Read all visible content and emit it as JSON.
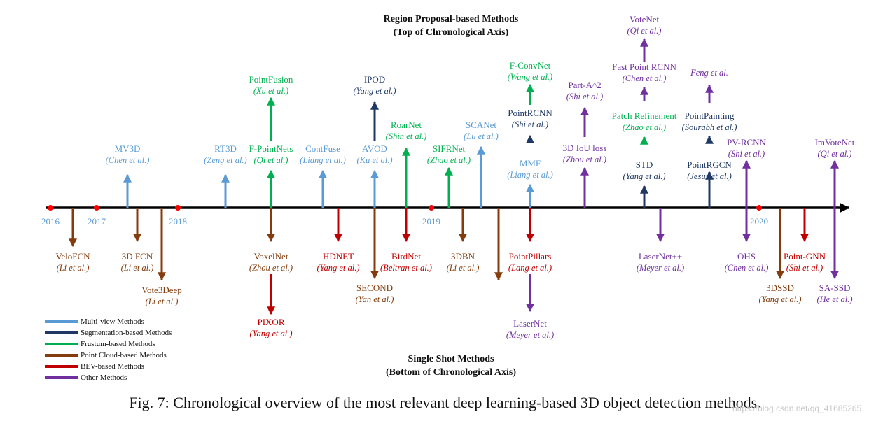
{
  "headings": {
    "top_title": "Region Proposal-based Methods",
    "top_subtitle": "(Top of Chronological Axis)",
    "bottom_title": "Single Shot Methods",
    "bottom_subtitle": "(Bottom of Chronological Axis)"
  },
  "caption": "Fig. 7: Chronological overview of the most relevant deep learning-based 3D object detection methods.",
  "watermark": "https://blog.csdn.net/qq_41685265",
  "colors": {
    "multiview": "#5b9bd5",
    "segmentation": "#1f3864",
    "frustum": "#00b050",
    "pointcloud": "#843c0c",
    "bev": "#c00000",
    "other": "#7030a0",
    "axis": "#000000",
    "year_dot": "#ff0000",
    "year_text": "#5b9bd5"
  },
  "legend": [
    {
      "key": "multiview",
      "label": "Multi-view Methods"
    },
    {
      "key": "segmentation",
      "label": "Segmentation-based Methods"
    },
    {
      "key": "frustum",
      "label": "Frustum-based Methods"
    },
    {
      "key": "pointcloud",
      "label": "Point Cloud-based Methods"
    },
    {
      "key": "bev",
      "label": "BEV-based Methods"
    },
    {
      "key": "other",
      "label": "Other Methods"
    }
  ],
  "years": [
    "2016",
    "2017",
    "2018",
    "2019",
    "2020"
  ],
  "methods": [
    {
      "name": "MV3D",
      "authors": "(Chen et al.)",
      "category": "multiview",
      "side": "top"
    },
    {
      "name": "RT3D",
      "authors": "(Zeng et al.)",
      "category": "multiview",
      "side": "top"
    },
    {
      "name": "F-PointNets",
      "authors": "(Qi et al.)",
      "category": "frustum",
      "side": "top"
    },
    {
      "name": "PointFusion",
      "authors": "(Xu et al.)",
      "category": "frustum",
      "side": "top"
    },
    {
      "name": "ContFuse",
      "authors": "(Liang et al.)",
      "category": "multiview",
      "side": "top"
    },
    {
      "name": "AVOD",
      "authors": "(Ku et al.)",
      "category": "multiview",
      "side": "top"
    },
    {
      "name": "IPOD",
      "authors": "(Yang et al.)",
      "category": "segmentation",
      "side": "top"
    },
    {
      "name": "RoarNet",
      "authors": "(Shin et al.)",
      "category": "frustum",
      "side": "top"
    },
    {
      "name": "SIFRNet",
      "authors": "(Zhao et al.)",
      "category": "frustum",
      "side": "top"
    },
    {
      "name": "SCANet",
      "authors": "(Lu et al.)",
      "category": "multiview",
      "side": "top"
    },
    {
      "name": "MMF",
      "authors": "(Liang et al.)",
      "category": "multiview",
      "side": "top"
    },
    {
      "name": "PointRCNN",
      "authors": "(Shi et al.)",
      "category": "segmentation",
      "side": "top"
    },
    {
      "name": "F-ConvNet",
      "authors": "(Wang et al.)",
      "category": "frustum",
      "side": "top"
    },
    {
      "name": "3D IoU loss",
      "authors": "(Zhou et al.)",
      "category": "other",
      "side": "top"
    },
    {
      "name": "Part-A^2",
      "authors": "(Shi et al.)",
      "category": "other",
      "side": "top"
    },
    {
      "name": "STD",
      "authors": "(Yang et al.)",
      "category": "segmentation",
      "side": "top"
    },
    {
      "name": "Patch Refinement",
      "authors": "(Zhao et al.)",
      "category": "frustum",
      "side": "top"
    },
    {
      "name": "Fast Point RCNN",
      "authors": "(Chen et al.)",
      "category": "other",
      "side": "top"
    },
    {
      "name": "VoteNet",
      "authors": "(Qi et al.)",
      "category": "other",
      "side": "top"
    },
    {
      "name": "PointRGCN",
      "authors": "(Jesus et al.)",
      "category": "segmentation",
      "side": "top"
    },
    {
      "name": "PointPainting",
      "authors": "(Sourabh et al.)",
      "category": "segmentation",
      "side": "top"
    },
    {
      "name": "",
      "authors": "Feng et al.",
      "category": "other",
      "side": "top"
    },
    {
      "name": "PV-RCNN",
      "authors": "(Shi et al.)",
      "category": "other",
      "side": "top"
    },
    {
      "name": "ImVoteNet",
      "authors": "(Qi et al.)",
      "category": "other",
      "side": "top"
    },
    {
      "name": "VeloFCN",
      "authors": "(Li et al.)",
      "category": "pointcloud",
      "side": "bottom"
    },
    {
      "name": "3D FCN",
      "authors": "(Li et al.)",
      "category": "pointcloud",
      "side": "bottom"
    },
    {
      "name": "Vote3Deep",
      "authors": "(Li et al.)",
      "category": "pointcloud",
      "side": "bottom"
    },
    {
      "name": "VoxelNet",
      "authors": "(Zhou et al.)",
      "category": "pointcloud",
      "side": "bottom"
    },
    {
      "name": "PIXOR",
      "authors": "(Yang et al.)",
      "category": "bev",
      "side": "bottom"
    },
    {
      "name": "HDNET",
      "authors": "(Yang et al.)",
      "category": "bev",
      "side": "bottom"
    },
    {
      "name": "SECOND",
      "authors": "(Yan et al.)",
      "category": "pointcloud",
      "side": "bottom"
    },
    {
      "name": "BirdNet",
      "authors": "(Beltran et al.)",
      "category": "bev",
      "side": "bottom"
    },
    {
      "name": "3DBN",
      "authors": "(Li et al.)",
      "category": "pointcloud",
      "side": "bottom"
    },
    {
      "name": "",
      "authors": "",
      "category": "pointcloud",
      "side": "bottom"
    },
    {
      "name": "PointPillars",
      "authors": "(Lang et al.)",
      "category": "bev",
      "side": "bottom"
    },
    {
      "name": "LaserNet",
      "authors": "(Meyer et al.)",
      "category": "other",
      "side": "bottom"
    },
    {
      "name": "LaserNet++",
      "authors": "(Meyer et al.)",
      "category": "other",
      "side": "bottom"
    },
    {
      "name": "OHS",
      "authors": "(Chen et al.)",
      "category": "other",
      "side": "bottom"
    },
    {
      "name": "3DSSD",
      "authors": "(Yang et al.)",
      "category": "pointcloud",
      "side": "bottom"
    },
    {
      "name": "Point-GNN",
      "authors": "(Shi et al.)",
      "category": "bev",
      "side": "bottom"
    },
    {
      "name": "SA-SSD",
      "authors": "(He et al.)",
      "category": "other",
      "side": "bottom"
    }
  ]
}
